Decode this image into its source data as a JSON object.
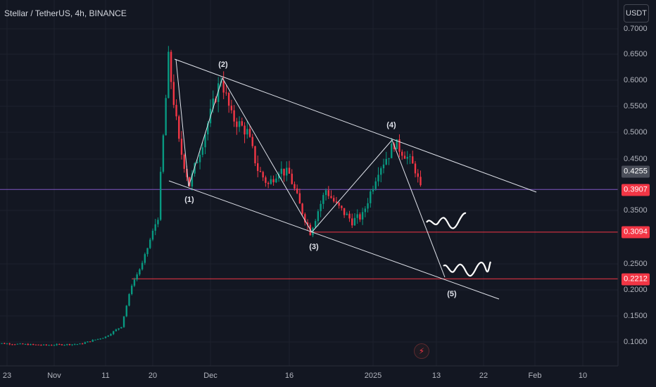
{
  "header": {
    "title": "Stellar / TetherUS, 4h, BINANCE",
    "currency_button": "USDT"
  },
  "y_axis": {
    "ticks": [
      "0.7000",
      "0.6500",
      "0.6000",
      "0.5500",
      "0.5000",
      "0.4500",
      "0.3500",
      "0.2500",
      "0.2000",
      "0.1500",
      "0.1000"
    ]
  },
  "x_axis": {
    "ticks": [
      "23",
      "Nov",
      "11",
      "20",
      "Dec",
      "16",
      "2025",
      "13",
      "22",
      "Feb",
      "10"
    ]
  },
  "price_badges": {
    "current": "0.4255",
    "last": "0.3907",
    "support_1": "0.3094",
    "support_2": "0.2212"
  },
  "wave_labels": [
    "(1)",
    "(2)",
    "(3)",
    "(4)",
    "(5)"
  ],
  "colors": {
    "background": "#131722",
    "up_candle": "#089981",
    "down_candle": "#f23645",
    "support_line": "#f23645",
    "price_line": "#7e57c2",
    "drawing": "#e0e3eb"
  },
  "icons": {
    "alert": "lightning-bolt-icon"
  },
  "chart_data": {
    "type": "candlestick",
    "title": "Stellar / TetherUS, 4h, BINANCE",
    "y_unit": "USDT",
    "ylim": [
      0.06,
      0.72
    ],
    "x_ticks": [
      "23",
      "Nov",
      "11",
      "20",
      "Dec",
      "16",
      "2025",
      "13",
      "22",
      "Feb",
      "10"
    ],
    "price_path": [
      [
        "Oct 20",
        0.098
      ],
      [
        "Oct 30",
        0.094
      ],
      [
        "Nov 6",
        0.096
      ],
      [
        "Nov 11",
        0.11
      ],
      [
        "Nov 14",
        0.13
      ],
      [
        "Nov 16",
        0.21
      ],
      [
        "Nov 18",
        0.25
      ],
      [
        "Nov 21",
        0.34
      ],
      [
        "Nov 23",
        0.64
      ],
      [
        "Nov 25",
        0.48
      ],
      [
        "Nov 27",
        0.4
      ],
      [
        "Nov 30",
        0.5
      ],
      [
        "Dec 3",
        0.605
      ],
      [
        "Dec 5",
        0.53
      ],
      [
        "Dec 8",
        0.5
      ],
      [
        "Dec 10",
        0.43
      ],
      [
        "Dec 12",
        0.4
      ],
      [
        "Dec 14",
        0.43
      ],
      [
        "Dec 16",
        0.42
      ],
      [
        "Dec 18",
        0.36
      ],
      [
        "Dec 20",
        0.31
      ],
      [
        "Dec 23",
        0.39
      ],
      [
        "Dec 25",
        0.36
      ],
      [
        "Dec 28",
        0.33
      ],
      [
        "Dec 30",
        0.34
      ],
      [
        "Jan 2",
        0.43
      ],
      [
        "Jan 4",
        0.46
      ],
      [
        "Jan 5",
        0.48
      ],
      [
        "Jan 7",
        0.46
      ],
      [
        "Jan 9",
        0.43
      ],
      [
        "Jan 10",
        0.39
      ]
    ],
    "channel": {
      "upper": [
        [
          "Nov 22",
          0.645
        ],
        [
          "Jan 30",
          0.37
        ]
      ],
      "lower": [
        [
          "Nov 21",
          0.4
        ],
        [
          "Jan 25",
          0.18
        ]
      ]
    },
    "elliott_waves": [
      {
        "label": "(1)",
        "date": "Nov 25",
        "price": 0.4
      },
      {
        "label": "(2)",
        "date": "Dec 3",
        "price": 0.605
      },
      {
        "label": "(3)",
        "date": "Dec 20",
        "price": 0.3094
      },
      {
        "label": "(4)",
        "date": "Jan 5",
        "price": 0.49
      },
      {
        "label": "(5)",
        "date": "Jan 15",
        "price": 0.2212
      }
    ],
    "horizontal_lines": [
      {
        "label": "last",
        "price": 0.3907
      },
      {
        "label": "support",
        "price": 0.3094
      },
      {
        "label": "support",
        "price": 0.2212
      }
    ],
    "grid": true
  }
}
